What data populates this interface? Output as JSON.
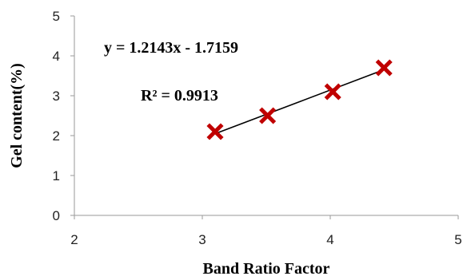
{
  "chart_data": {
    "type": "scatter",
    "title": "",
    "xlabel": "Band Ratio Factor",
    "ylabel": "Gel content(%)",
    "xlim": [
      2,
      5
    ],
    "ylim": [
      0,
      5
    ],
    "xticks": [
      "2",
      "3",
      "4",
      "5"
    ],
    "yticks": [
      "0",
      "1",
      "2",
      "3",
      "4",
      "5"
    ],
    "grid": false,
    "legend": "none",
    "series": [
      {
        "x": [
          3.1,
          3.51,
          4.02,
          4.42
        ],
        "y": [
          2.1,
          2.5,
          3.1,
          3.7
        ],
        "marker": "x",
        "color": "#c00000"
      }
    ],
    "trendline": {
      "equation": "y = 1.2143x - 1.7159",
      "r_squared": "R² = 0.9913",
      "slope": 1.2143,
      "intercept": -1.7159,
      "x_range": [
        3.1,
        4.42
      ],
      "color": "#000000"
    }
  }
}
